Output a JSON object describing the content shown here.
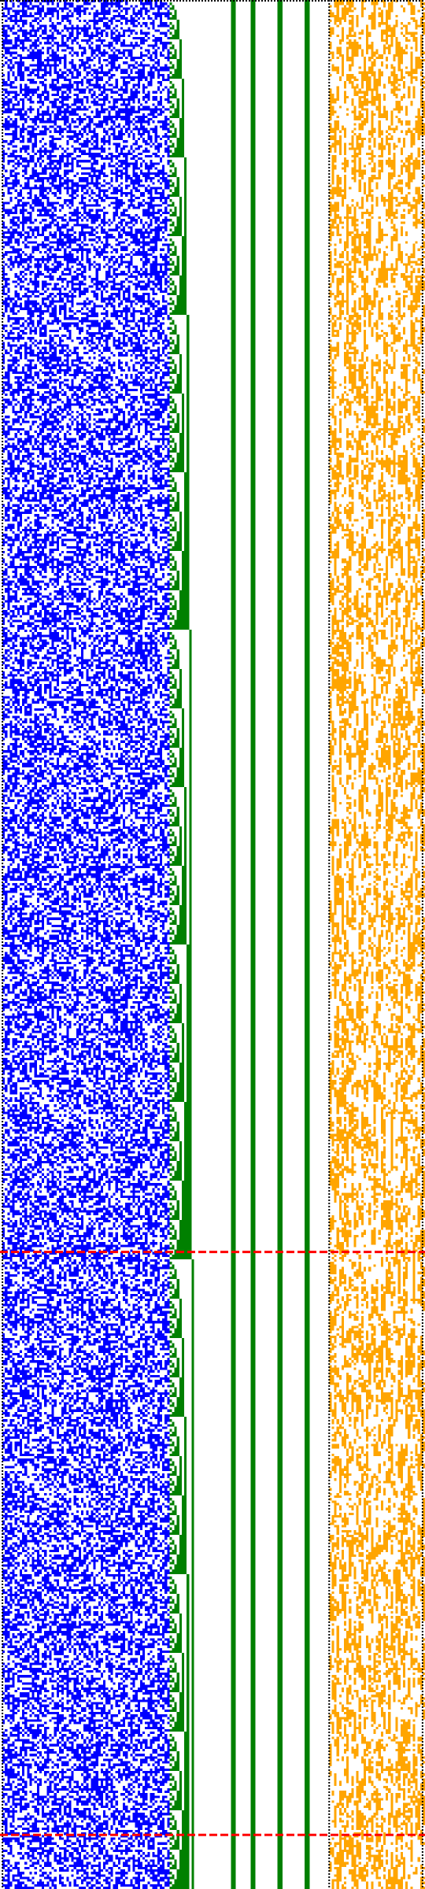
{
  "colors": {
    "background": "#ffffff",
    "state_bits": "#0000ff",
    "counter_bits": "#008000",
    "output_bits": "#ffa500",
    "separator": "#000000",
    "marker": "#ff0000"
  },
  "grid": {
    "columns": 173,
    "rows": 768
  },
  "panels": {
    "state": {
      "from_col": 1,
      "to_col": 68
    },
    "counter": {
      "from_col": 69,
      "to_col": 133
    },
    "output": {
      "from_col": 134,
      "to_col": 172
    }
  },
  "counter_lines": {
    "full_height_columns": [
      94,
      95,
      102,
      103,
      113,
      114,
      124,
      125
    ]
  },
  "separators": {
    "dotted_columns": [
      1,
      134,
      172
    ],
    "dotted_top_row": 0
  },
  "markers": {
    "rows": [
      509,
      746
    ]
  }
}
